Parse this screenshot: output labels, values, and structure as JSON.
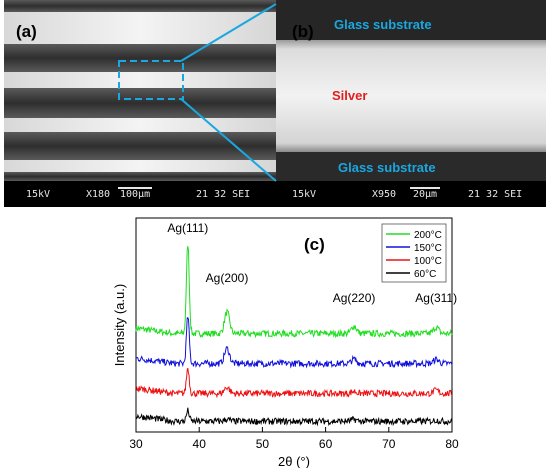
{
  "figure": {
    "panel_a": {
      "label": "(a)",
      "info_kv": "15kV",
      "info_mag": "X180",
      "info_scale": "100µm",
      "info_id": "21 32 SEI"
    },
    "panel_b": {
      "label": "(b)",
      "top_region": "Glass substrate",
      "middle_region": "Silver",
      "bottom_region": "Glass substrate",
      "info_kv": "15kV",
      "info_mag": "X950",
      "info_scale": "20µm",
      "info_id": "21 32 SEI"
    },
    "colors": {
      "glass_label": "#1aa7e0",
      "silver_label": "#e0201e",
      "zoom_lines": "#1aa7e0"
    }
  },
  "chart_data": {
    "type": "line",
    "panel_label": "(c)",
    "xlabel": "2θ (°)",
    "ylabel": "Intensity (a.u.)",
    "xlim": [
      30,
      80
    ],
    "xticks": [
      30,
      40,
      50,
      60,
      70,
      80
    ],
    "grid": false,
    "legend_position": "top-right",
    "annotations": [
      {
        "text": "Ag(111)",
        "x": 38.2
      },
      {
        "text": "Ag(200)",
        "x": 44.4
      },
      {
        "text": "Ag(220)",
        "x": 64.5
      },
      {
        "text": "Ag(311)",
        "x": 77.5
      }
    ],
    "series": [
      {
        "name": "200°C",
        "color": "#22dd22",
        "baseline": 4.6,
        "peaks": [
          [
            38.2,
            4.2
          ],
          [
            44.4,
            1.0
          ],
          [
            64.5,
            0.35
          ],
          [
            77.5,
            0.3
          ]
        ]
      },
      {
        "name": "150°C",
        "color": "#1010dd",
        "baseline": 3.2,
        "peaks": [
          [
            38.2,
            2.2
          ],
          [
            44.4,
            0.7
          ],
          [
            64.5,
            0.2
          ],
          [
            77.5,
            0.2
          ]
        ]
      },
      {
        "name": "100°C",
        "color": "#ee1111",
        "baseline": 1.8,
        "peaks": [
          [
            38.2,
            1.2
          ],
          [
            44.4,
            0.3
          ],
          [
            64.5,
            0.1
          ],
          [
            77.5,
            0.15
          ]
        ]
      },
      {
        "name": "60°C",
        "color": "#000000",
        "baseline": 0.5,
        "peaks": [
          [
            38.2,
            0.5
          ],
          [
            44.4,
            0.1
          ],
          [
            64.5,
            0.08
          ],
          [
            77.5,
            0.05
          ]
        ]
      }
    ]
  }
}
